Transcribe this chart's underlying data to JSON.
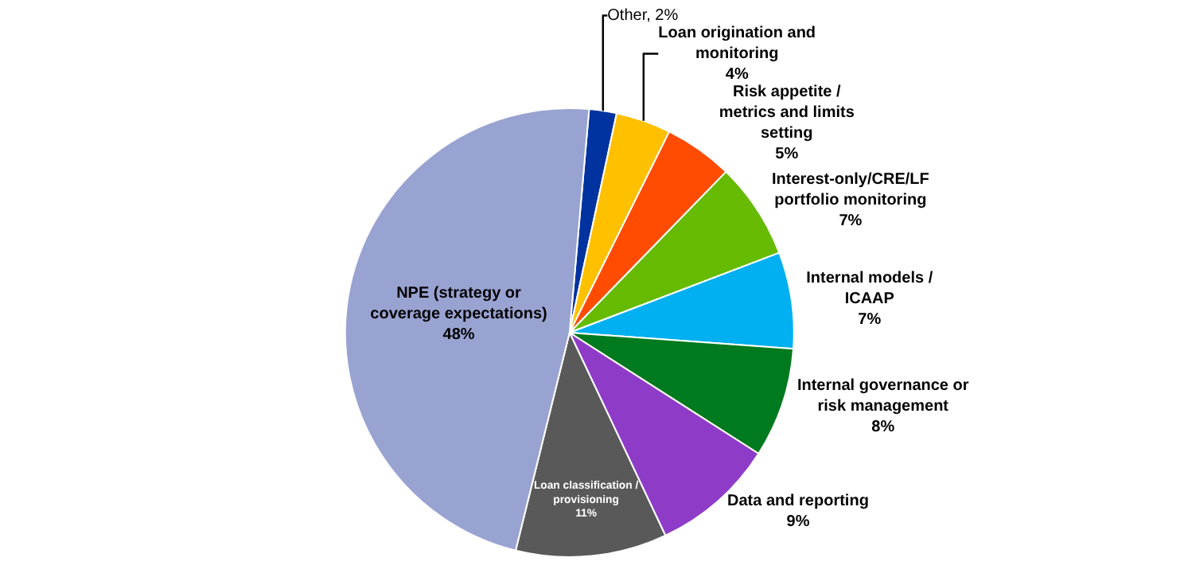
{
  "chart_data": {
    "type": "pie",
    "categories": [
      "Other",
      "Loan origination and monitoring",
      "Risk appetite / metrics and limits setting",
      "Interest-only/CRE/LF portfolio monitoring",
      "Internal models / ICAAP",
      "Internal governance or risk management",
      "Data and reporting",
      "Loan classification / provisioning",
      "NPE (strategy or coverage expectations)"
    ],
    "values": [
      2,
      4,
      5,
      7,
      7,
      8,
      9,
      11,
      48
    ],
    "colors": [
      "#0033a0",
      "#ffc000",
      "#ff4c00",
      "#66bb00",
      "#00b0f0",
      "#007a1f",
      "#8e3cc8",
      "#595959",
      "#99a3d1"
    ],
    "value_labels": [
      "2%",
      "4%",
      "5%",
      "7%",
      "7%",
      "8%",
      "9%",
      "11%",
      "48%"
    ]
  }
}
